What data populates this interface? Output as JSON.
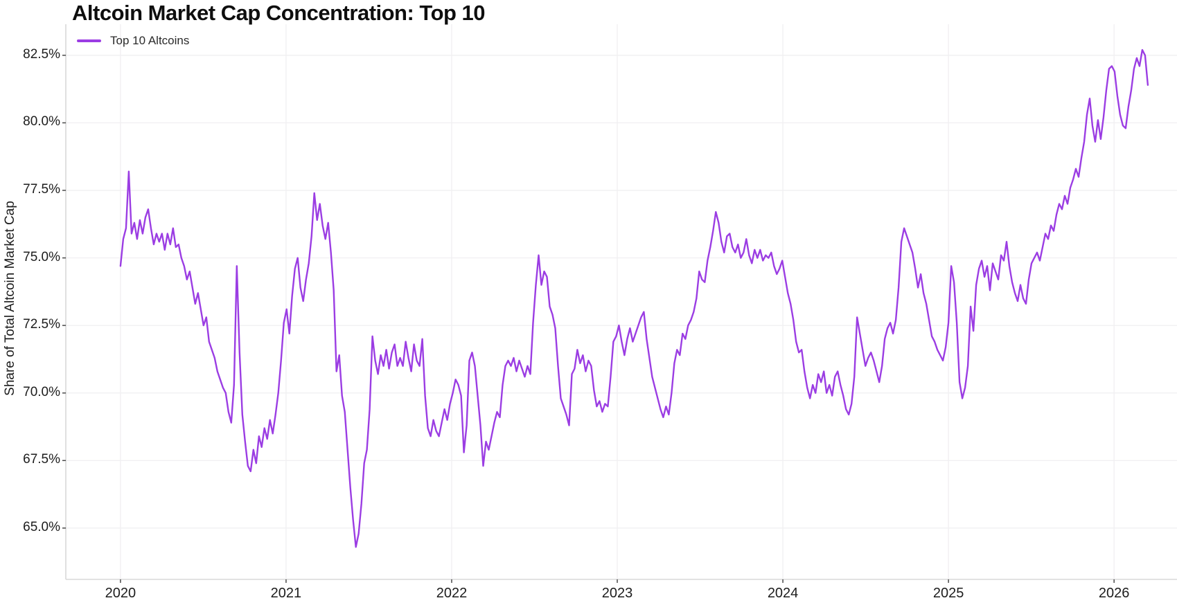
{
  "title": "Altcoin Market Cap Concentration: Top 10",
  "legend": {
    "label": "Top 10 Altcoins"
  },
  "axes": {
    "y_label": "Share of Total Altcoin Market Cap",
    "y_tick_labels": [
      "65.0%",
      "67.5%",
      "70.0%",
      "72.5%",
      "75.0%",
      "77.5%",
      "80.0%",
      "82.5%"
    ],
    "x_tick_labels": [
      "2020",
      "2021",
      "2022",
      "2023",
      "2024",
      "2025",
      "2026"
    ]
  },
  "colors": {
    "line": "#9b3de3",
    "grid": "#f1f0f2",
    "spine": "#d8d8d8",
    "tick": "#4a4a4a",
    "background": "#ffffff"
  },
  "chart_data": {
    "type": "line",
    "title": "Altcoin Market Cap Concentration: Top 10",
    "xlabel": "",
    "ylabel": "Share of Total Altcoin Market Cap",
    "legend_position": "top-left",
    "grid": true,
    "xlim": [
      2019.67,
      2026.38
    ],
    "ylim": [
      63.1,
      83.65
    ],
    "xticks": [
      2020,
      2021,
      2022,
      2023,
      2024,
      2025,
      2026
    ],
    "yticks": [
      65.0,
      67.5,
      70.0,
      72.5,
      75.0,
      77.5,
      80.0,
      82.5
    ],
    "series": [
      {
        "name": "Top 10 Altcoins",
        "color": "#9b3de3",
        "x_start_year": 2020.0,
        "x_step_years": 0.016722,
        "values": [
          74.7,
          75.7,
          76.1,
          78.2,
          75.9,
          76.3,
          75.7,
          76.4,
          75.9,
          76.5,
          76.8,
          76.1,
          75.5,
          75.9,
          75.6,
          75.9,
          75.3,
          75.9,
          75.5,
          76.1,
          75.4,
          75.5,
          75.0,
          74.7,
          74.2,
          74.5,
          73.9,
          73.3,
          73.7,
          73.1,
          72.5,
          72.8,
          71.9,
          71.6,
          71.3,
          70.8,
          70.5,
          70.2,
          70.0,
          69.3,
          68.9,
          70.3,
          74.7,
          71.5,
          69.2,
          68.2,
          67.3,
          67.1,
          67.9,
          67.4,
          68.4,
          68.0,
          68.7,
          68.3,
          69.0,
          68.5,
          69.2,
          70.0,
          71.2,
          72.6,
          73.1,
          72.2,
          73.6,
          74.6,
          75.0,
          73.9,
          73.4,
          74.2,
          74.8,
          75.8,
          77.4,
          76.4,
          77.0,
          76.2,
          75.7,
          76.3,
          75.2,
          73.8,
          70.8,
          71.4,
          69.9,
          69.3,
          67.9,
          66.5,
          65.3,
          64.3,
          64.8,
          65.9,
          67.4,
          67.9,
          69.4,
          72.1,
          71.2,
          70.7,
          71.4,
          71.0,
          71.6,
          70.9,
          71.5,
          71.8,
          71.0,
          71.3,
          71.0,
          71.9,
          71.3,
          70.8,
          71.8,
          71.2,
          71.0,
          72.0,
          69.9,
          68.7,
          68.4,
          69.0,
          68.6,
          68.4,
          68.9,
          69.4,
          69.0,
          69.6,
          70.0,
          70.5,
          70.3,
          69.9,
          67.8,
          68.8,
          71.2,
          71.5,
          71.0,
          69.9,
          68.8,
          67.3,
          68.2,
          67.9,
          68.4,
          68.9,
          69.3,
          69.1,
          70.3,
          71.0,
          71.2,
          71.0,
          71.3,
          70.8,
          71.2,
          70.9,
          70.6,
          71.0,
          70.7,
          72.6,
          74.0,
          75.1,
          74.0,
          74.5,
          74.3,
          73.2,
          72.9,
          72.4,
          71.0,
          69.8,
          69.5,
          69.2,
          68.8,
          70.7,
          70.9,
          71.6,
          71.1,
          71.4,
          70.8,
          71.2,
          71.0,
          70.1,
          69.5,
          69.7,
          69.3,
          69.6,
          69.5,
          70.6,
          71.9,
          72.1,
          72.5,
          71.9,
          71.4,
          72.0,
          72.4,
          71.9,
          72.2,
          72.5,
          72.8,
          73.0,
          72.0,
          71.3,
          70.6,
          70.2,
          69.8,
          69.4,
          69.1,
          69.5,
          69.2,
          70.0,
          71.1,
          71.6,
          71.4,
          72.2,
          72.0,
          72.5,
          72.7,
          73.0,
          73.5,
          74.5,
          74.2,
          74.1,
          74.9,
          75.4,
          76.0,
          76.7,
          76.3,
          75.6,
          75.2,
          75.8,
          75.9,
          75.4,
          75.2,
          75.5,
          75.0,
          75.2,
          75.7,
          75.1,
          74.8,
          75.3,
          75.0,
          75.3,
          74.9,
          75.1,
          75.0,
          75.2,
          74.7,
          74.4,
          74.6,
          74.9,
          74.3,
          73.7,
          73.3,
          72.7,
          71.9,
          71.5,
          71.6,
          70.8,
          70.2,
          69.8,
          70.3,
          70.0,
          70.7,
          70.4,
          70.8,
          70.0,
          70.3,
          69.9,
          70.6,
          70.8,
          70.3,
          69.9,
          69.4,
          69.2,
          69.6,
          70.6,
          72.8,
          72.2,
          71.6,
          71.0,
          71.3,
          71.5,
          71.2,
          70.8,
          70.4,
          71.0,
          72.0,
          72.4,
          72.6,
          72.2,
          72.7,
          73.9,
          75.6,
          76.1,
          75.8,
          75.5,
          75.2,
          74.6,
          73.9,
          74.4,
          73.7,
          73.3,
          72.7,
          72.1,
          71.9,
          71.6,
          71.4,
          71.2,
          71.7,
          72.6,
          74.7,
          74.1,
          72.6,
          70.4,
          69.8,
          70.2,
          71.0,
          73.2,
          72.3,
          74.0,
          74.6,
          74.9,
          74.3,
          74.7,
          73.8,
          74.8,
          74.5,
          74.2,
          75.1,
          74.9,
          75.6,
          74.7,
          74.1,
          73.7,
          73.4,
          74.0,
          73.5,
          73.3,
          74.2,
          74.8,
          75.0,
          75.2,
          74.9,
          75.4,
          75.9,
          75.7,
          76.2,
          76.0,
          76.6,
          77.0,
          76.8,
          77.3,
          77.0,
          77.6,
          77.9,
          78.3,
          78.0,
          78.7,
          79.3,
          80.3,
          80.9,
          79.9,
          79.3,
          80.1,
          79.4,
          80.2,
          81.2,
          82.0,
          82.1,
          81.9,
          81.0,
          80.3,
          79.9,
          79.8,
          80.6,
          81.2,
          82.0,
          82.4,
          82.1,
          82.7,
          82.5,
          81.4
        ]
      }
    ]
  }
}
